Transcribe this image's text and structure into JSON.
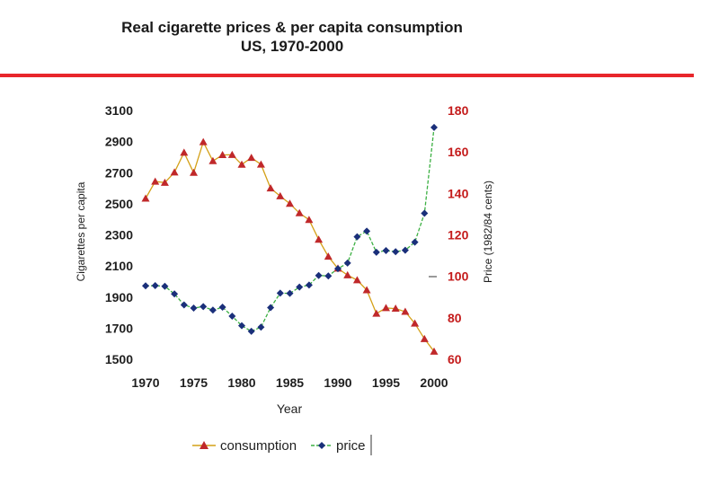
{
  "chart_data": {
    "type": "line",
    "title": "Real cigarette prices & per capita consumption",
    "subtitle": "US, 1970-2000",
    "xlabel": "Year",
    "ylabel_left": "Cigarettes per capita",
    "ylabel_right": "Price (1982/84 cents)",
    "xlim": [
      1970,
      2000
    ],
    "ylim_left": [
      1500,
      3100
    ],
    "ylim_right": [
      60,
      180
    ],
    "x_ticks": [
      "1970",
      "1975",
      "1980",
      "1985",
      "1990",
      "1995",
      "2000"
    ],
    "left_ticks": [
      "1500",
      "1700",
      "1900",
      "2100",
      "2300",
      "2500",
      "2700",
      "2900",
      "3100"
    ],
    "right_ticks": [
      "60",
      "80",
      "100",
      "120",
      "140",
      "160",
      "180"
    ],
    "x": [
      1970,
      1971,
      1972,
      1973,
      1974,
      1975,
      1976,
      1977,
      1978,
      1979,
      1980,
      1981,
      1982,
      1983,
      1984,
      1985,
      1986,
      1987,
      1988,
      1989,
      1990,
      1991,
      1992,
      1993,
      1994,
      1995,
      1996,
      1997,
      1998,
      1999,
      2000
    ],
    "series": [
      {
        "name": "consumption",
        "axis": "left",
        "color": "#d4a017",
        "marker_color": "#c0282a",
        "values": [
          2534,
          2643,
          2636,
          2702,
          2829,
          2700,
          2897,
          2775,
          2814,
          2815,
          2752,
          2796,
          2753,
          2600,
          2549,
          2501,
          2440,
          2397,
          2270,
          2161,
          2084,
          2041,
          2009,
          1945,
          1794,
          1830,
          1826,
          1806,
          1730,
          1631,
          1550
        ]
      },
      {
        "name": "price",
        "axis": "right",
        "color": "#3cb043",
        "marker_color": "#1a2f7a",
        "values": [
          95.4,
          95.5,
          95.2,
          91.5,
          86.2,
          84.7,
          85.4,
          83.7,
          85.1,
          80.8,
          76.2,
          73.5,
          75.5,
          84.9,
          91.9,
          91.8,
          94.8,
          95.8,
          100.4,
          100.2,
          103.7,
          106.4,
          119.1,
          121.8,
          111.6,
          112.4,
          111.9,
          112.6,
          116.5,
          130.4,
          171.8
        ]
      }
    ],
    "legend_position": "bottom",
    "grid": false
  }
}
